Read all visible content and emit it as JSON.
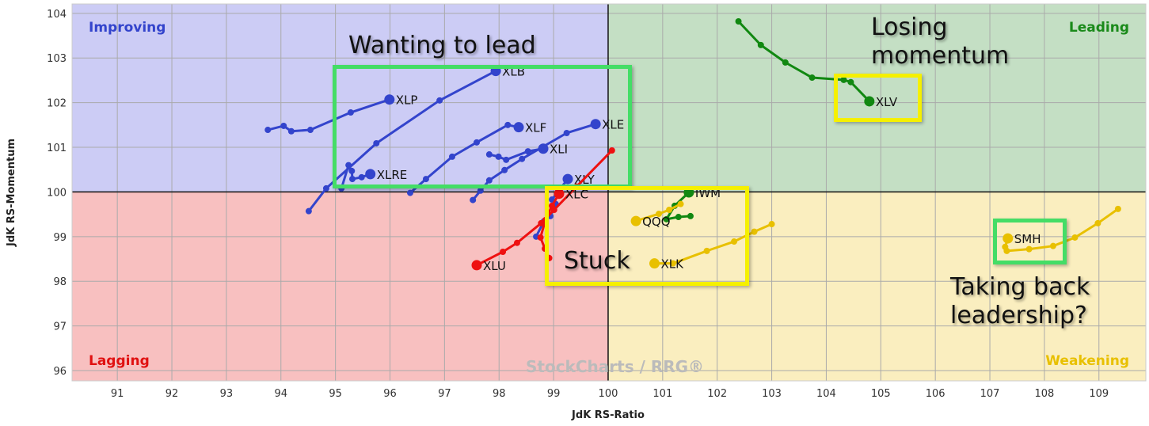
{
  "chart_data": {
    "type": "scatter",
    "subtype": "relative-rotation-graph",
    "xlabel": "JdK RS-Ratio",
    "ylabel": "JdK RS-Momentum",
    "xlim": [
      90.17,
      109.86
    ],
    "ylim": [
      95.77,
      104.21
    ],
    "xticks": [
      91,
      92,
      93,
      94,
      95,
      96,
      97,
      98,
      99,
      100,
      101,
      102,
      103,
      104,
      105,
      106,
      107,
      108,
      109
    ],
    "yticks": [
      96,
      97,
      98,
      99,
      100,
      101,
      102,
      103,
      104
    ],
    "grid": true,
    "center": [
      100,
      100
    ],
    "quadrants": [
      {
        "name": "Improving",
        "color": "#ccccf5",
        "label_color": "#3344cc",
        "position": "top-left"
      },
      {
        "name": "Leading",
        "color": "#c4dfc4",
        "label_color": "#1a8a1a",
        "position": "top-right"
      },
      {
        "name": "Lagging",
        "color": "#f8c0c0",
        "label_color": "#e01010",
        "position": "bottom-left"
      },
      {
        "name": "Weakening",
        "color": "#faeebf",
        "label_color": "#e8c000",
        "position": "bottom-right"
      }
    ],
    "series": [
      {
        "name": "XLP",
        "color": "#3344cc",
        "points": [
          [
            93.76,
            101.39
          ],
          [
            94.05,
            101.48
          ],
          [
            94.19,
            101.36
          ],
          [
            94.54,
            101.39
          ],
          [
            95.28,
            101.78
          ],
          [
            95.99,
            102.07
          ]
        ]
      },
      {
        "name": "XLB",
        "color": "#3344cc",
        "points": [
          [
            94.51,
            99.57
          ],
          [
            94.83,
            100.08
          ],
          [
            95.75,
            101.09
          ],
          [
            96.91,
            102.05
          ],
          [
            97.94,
            102.71
          ]
        ]
      },
      {
        "name": "XLRE",
        "color": "#3344cc",
        "points": [
          [
            95.11,
            100.08
          ],
          [
            95.24,
            100.6
          ],
          [
            95.3,
            100.47
          ],
          [
            95.31,
            100.29
          ],
          [
            95.48,
            100.33
          ],
          [
            95.64,
            100.4
          ]
        ]
      },
      {
        "name": "XLF",
        "color": "#3344cc",
        "points": [
          [
            96.37,
            99.98
          ],
          [
            96.66,
            100.29
          ],
          [
            97.14,
            100.79
          ],
          [
            97.59,
            101.11
          ],
          [
            98.16,
            101.5
          ],
          [
            98.36,
            101.45
          ]
        ]
      },
      {
        "name": "XLI",
        "color": "#3344cc",
        "points": [
          [
            97.82,
            100.84
          ],
          [
            97.99,
            100.79
          ],
          [
            98.13,
            100.72
          ],
          [
            98.53,
            100.91
          ],
          [
            98.81,
            100.97
          ]
        ]
      },
      {
        "name": "XLE",
        "color": "#3344cc",
        "points": [
          [
            97.52,
            99.82
          ],
          [
            97.66,
            100.03
          ],
          [
            97.82,
            100.26
          ],
          [
            98.1,
            100.49
          ],
          [
            98.42,
            100.74
          ],
          [
            99.24,
            101.32
          ],
          [
            99.77,
            101.52
          ]
        ]
      },
      {
        "name": "XLY",
        "color": "#3344cc",
        "points": [
          [
            98.68,
            99.0
          ],
          [
            98.82,
            99.34
          ],
          [
            98.94,
            99.46
          ],
          [
            99.04,
            99.73
          ],
          [
            98.97,
            99.83
          ],
          [
            99.26,
            100.29
          ]
        ]
      },
      {
        "name": "XLU",
        "color": "#ee1111",
        "points": [
          [
            100.07,
            100.93
          ],
          [
            99.42,
            100.12
          ],
          [
            99.01,
            99.6
          ],
          [
            98.77,
            99.3
          ],
          [
            98.33,
            98.86
          ],
          [
            98.07,
            98.66
          ],
          [
            97.59,
            98.36
          ]
        ]
      },
      {
        "name": "XLC",
        "color": "#ee1111",
        "points": [
          [
            98.92,
            98.52
          ],
          [
            98.84,
            98.73
          ],
          [
            98.76,
            98.98
          ],
          [
            98.85,
            99.37
          ],
          [
            98.97,
            99.69
          ],
          [
            99.1,
            99.96
          ]
        ]
      },
      {
        "name": "IWM",
        "color": "#118811",
        "points": [
          [
            101.51,
            99.46
          ],
          [
            101.29,
            99.44
          ],
          [
            101.07,
            99.39
          ],
          [
            101.22,
            99.69
          ],
          [
            101.48,
            99.99
          ]
        ]
      },
      {
        "name": "QQQ",
        "color": "#e8c000",
        "points": [
          [
            101.33,
            99.73
          ],
          [
            101.12,
            99.6
          ],
          [
            100.93,
            99.51
          ],
          [
            100.51,
            99.35
          ]
        ]
      },
      {
        "name": "XLK",
        "color": "#e8c000",
        "points": [
          [
            103.0,
            99.28
          ],
          [
            102.68,
            99.11
          ],
          [
            102.31,
            98.89
          ],
          [
            101.81,
            98.68
          ],
          [
            101.19,
            98.4
          ],
          [
            100.85,
            98.4
          ]
        ]
      },
      {
        "name": "XLV",
        "color": "#118811",
        "points": [
          [
            102.39,
            103.82
          ],
          [
            102.8,
            103.29
          ],
          [
            103.25,
            102.9
          ],
          [
            103.74,
            102.56
          ],
          [
            104.32,
            102.51
          ],
          [
            104.45,
            102.46
          ],
          [
            104.79,
            102.03
          ]
        ]
      },
      {
        "name": "SMH",
        "color": "#e8c000",
        "points": [
          [
            109.35,
            99.62
          ],
          [
            108.98,
            99.3
          ],
          [
            108.56,
            98.98
          ],
          [
            108.16,
            98.79
          ],
          [
            107.72,
            98.72
          ],
          [
            107.31,
            98.68
          ],
          [
            107.28,
            98.77
          ],
          [
            107.33,
            98.96
          ]
        ]
      }
    ],
    "annotations": [
      {
        "text": "Wanting to lead",
        "box_color": "#44dd66"
      },
      {
        "text": "Losing momentum",
        "box_color": "#f5f000"
      },
      {
        "text": "Stuck",
        "box_color": "#f5f000"
      },
      {
        "text": "Taking back leadership?",
        "box_color": "#44dd66"
      }
    ],
    "watermark": "StockCharts / RRG®"
  }
}
